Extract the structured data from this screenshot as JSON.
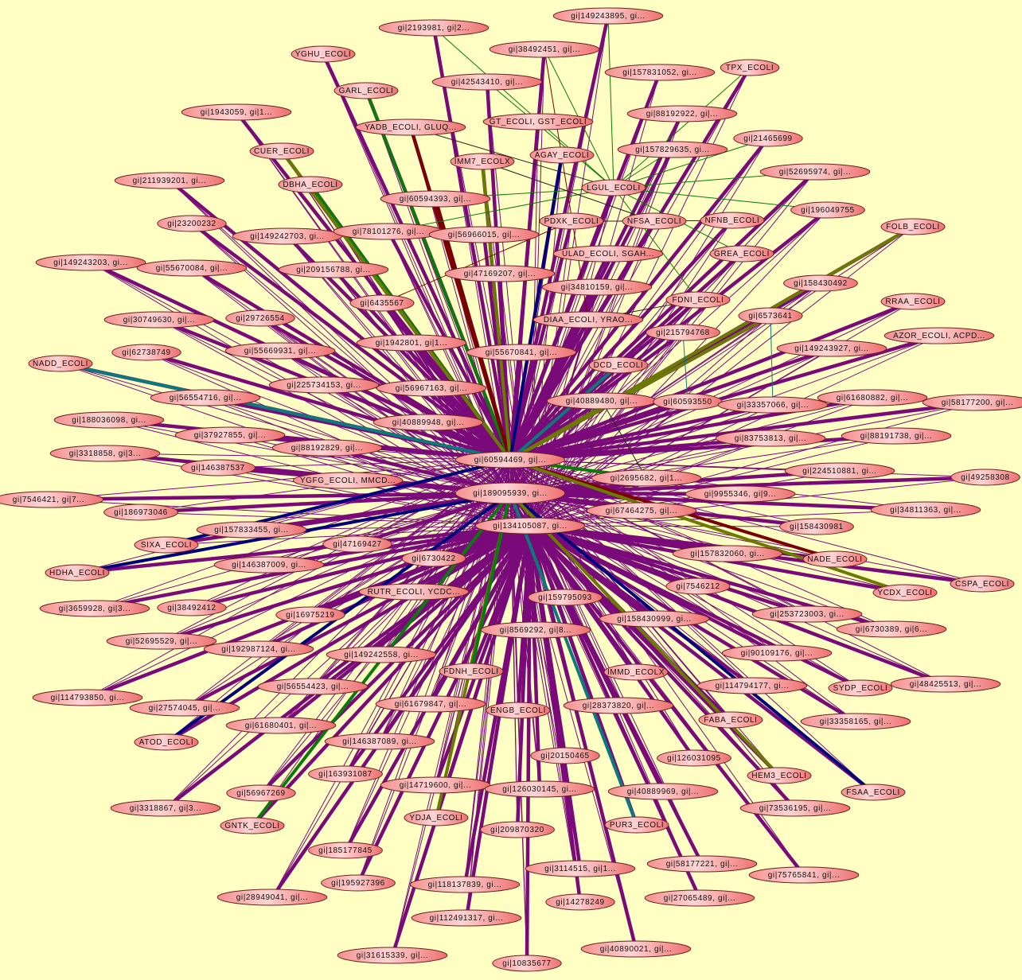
{
  "background_color": "#ffffc4",
  "node_fill_colors": [
    "#ffd0d0",
    "#f07878"
  ],
  "edge_colors": {
    "purple": "#7a0a7a",
    "green": "#0a7a0a",
    "olive": "#6b7a00",
    "darkred": "#7a0000",
    "navy": "#00007a",
    "teal": "#0a7a7a",
    "black": "#202020"
  },
  "hubs": [
    "gi|60594469, gi|...",
    "gi|189095939, gi...",
    "gi|134105087, gi..."
  ],
  "nodes": [
    "gi|149243895, gi...",
    "gi|2193981, gi|2...",
    "gi|38492451, gi|...",
    "YGHU_ECOLI",
    "gi|157831052, gi...",
    "TPX_ECOLI",
    "gi|42543410, gi|...",
    "GARL_ECOLI",
    "gi|1943059, gi|1...",
    "gi|88192922, gi|...",
    "GT_ECOLI, GST_ECOLI",
    "YADB_ECOLI, GLUQ...",
    "gi|21465699",
    "CUER_ECOLI",
    "gi|157829635, gi...",
    "AGAY_ECOLI",
    "IMM7_ECOLX",
    "gi|52695974, gi|...",
    "gi|211939201, gi...",
    "DBHA_ECOLI",
    "LGUL_ECOLI",
    "gi|60594393, gi|...",
    "gi|196049755",
    "gi|23200232",
    "PDXK_ECOLI",
    "NFSA_ECOLI",
    "NFNB_ECOLI",
    "FOLB_ECOLI",
    "gi|149242703, gi...",
    "gi|78101276, gi|...",
    "gi|56966015, gi|...",
    "gi|149243203, gi...",
    "gi|55670084, gi|...",
    "gi|209156788, gi...",
    "ULAD_ECOLI, SGAH...",
    "GREA_ECOLI",
    "gi|47169207, gi|...",
    "gi|34810159, gi|...",
    "gi|158430492",
    "gi|6435567",
    "FDNI_ECOLI",
    "RRAA_ECOLI",
    "gi|29726554",
    "gi|30749630, gi|...",
    "DIAA_ECOLI, YRAO...",
    "gi|6573641",
    "gi|215794768",
    "AZOR_ECOLI, ACPD...",
    "gi|1942801, gi|1...",
    "gi|55669931, gi|...",
    "gi|62738749",
    "gi|55670841, gi|...",
    "gi|149243927, gi...",
    "NADD_ECOLI",
    "DCD_ECOLI",
    "gi|225734153, gi...",
    "gi|56967163, gi|...",
    "gi|56554716, gi|...",
    "gi|40889480, gi|...",
    "gi|60593550",
    "gi|61680882, gi|...",
    "gi|33357066, gi|...",
    "gi|58177200, gi|...",
    "gi|188036098, gi...",
    "gi|40889948, gi|...",
    "gi|37927855, gi|...",
    "gi|83753813, gi|...",
    "gi|88191738, gi|...",
    "gi|3318858, gi|3...",
    "gi|88192829, gi|...",
    "gi|146387537",
    "YGFG_ECOLI, MMCD...",
    "gi|224510881, gi...",
    "gi|49258308",
    "gi|2695682, gi|1...",
    "gi|7546421, gi|7...",
    "gi|9955346, gi|9...",
    "gi|34811363, gi|...",
    "gi|186973046",
    "gi|67464275, gi|...",
    "gi|158430981",
    "gi|157833455, gi...",
    "SIXA_ECOLI",
    "gi|47169427",
    "gi|157832060, gi...",
    "NADE_ECOLI",
    "HDHA_ECOLI",
    "gi|146387009, gi...",
    "gi|6730422",
    "CSPA_ECOLI",
    "gi|7546212",
    "RUTR_ECOLI, YCDC...",
    "YCDX_ECOLI",
    "gi|159795093",
    "gi|3659928, gi|3...",
    "gi|38492412",
    "gi|16975219",
    "gi|253723003, gi...",
    "gi|158430999, gi...",
    "gi|6730389, gi|6...",
    "gi|8569292, gi|8...",
    "gi|52695529, gi|...",
    "gi|192987124, gi...",
    "gi|149242558, gi...",
    "gi|90109176, gi|...",
    "FDNH_ECOLI",
    "IMMD_ECOLX",
    "gi|48425513, gi|...",
    "gi|114793850, gi...",
    "gi|56554423, gi|...",
    "gi|114794177, gi...",
    "SYDP_ECOLI",
    "gi|27574045, gi|...",
    "gi|61679847, gi|...",
    "ENGB_ECOLI",
    "gi|28373820, gi|...",
    "FABA_ECOLI",
    "gi|33358165, gi|...",
    "ATOD_ECOLI",
    "gi|61680401, gi|...",
    "gi|146387089, gi...",
    "gi|20150465",
    "gi|126031095",
    "gi|163931087",
    "HEM3_ECOLI",
    "gi|14719600, gi|...",
    "gi|126030145, gi...",
    "gi|40889969, gi|...",
    "FSAA_ECOLI",
    "gi|56967269",
    "gi|3318867, gi|3...",
    "gi|73536195, gi|...",
    "GNTK_ECOLI",
    "YDJA_ECOLI",
    "PUR3_ECOLI",
    "gi|209870320",
    "gi|185177845",
    "gi|3114515, gi|1...",
    "gi|58177221, gi|...",
    "gi|75765841, gi|...",
    "gi|195927396",
    "gi|118137839, gi...",
    "gi|14278249",
    "gi|28949041, gi|...",
    "gi|27065489, gi|...",
    "gi|112491317, gi...",
    "gi|40890021, gi|...",
    "gi|31615339, gi|...",
    "gi|10835677"
  ],
  "colored_edges": [
    {
      "from": "GARL_ECOLI",
      "to": "gi|60594469, gi|...",
      "color": "green"
    },
    {
      "from": "DBHA_ECOLI",
      "to": "gi|60594469, gi|...",
      "color": "green"
    },
    {
      "from": "CUER_ECOLI",
      "to": "gi|60594469, gi|...",
      "color": "olive"
    },
    {
      "from": "YADB_ECOLI, GLUQ...",
      "to": "gi|60594469, gi|...",
      "color": "darkred"
    },
    {
      "from": "gi|60594393, gi|...",
      "to": "gi|60594469, gi|...",
      "color": "darkred"
    },
    {
      "from": "IMM7_ECOLX",
      "to": "gi|60594469, gi|...",
      "color": "olive"
    },
    {
      "from": "AGAY_ECOLI",
      "to": "gi|60594469, gi|...",
      "color": "navy"
    },
    {
      "from": "FOLB_ECOLI",
      "to": "gi|60594469, gi|...",
      "color": "olive"
    },
    {
      "from": "gi|6573641",
      "to": "gi|60594469, gi|...",
      "color": "olive"
    },
    {
      "from": "DCD_ECOLI",
      "to": "gi|60594469, gi|...",
      "color": "teal"
    },
    {
      "from": "NADD_ECOLI",
      "to": "gi|60594469, gi|...",
      "color": "teal"
    },
    {
      "from": "gi|2695682, gi|1...",
      "to": "gi|60594469, gi|...",
      "color": "green"
    },
    {
      "from": "NADE_ECOLI",
      "to": "gi|60594469, gi|...",
      "color": "darkred"
    },
    {
      "from": "YCDX_ECOLI",
      "to": "gi|60594469, gi|...",
      "color": "olive"
    },
    {
      "from": "SIXA_ECOLI",
      "to": "gi|60594469, gi|...",
      "color": "navy"
    },
    {
      "from": "HDHA_ECOLI",
      "to": "gi|189095939, gi...",
      "color": "navy"
    },
    {
      "from": "FSAA_ECOLI",
      "to": "gi|189095939, gi...",
      "color": "navy"
    },
    {
      "from": "HEM3_ECOLI",
      "to": "gi|189095939, gi...",
      "color": "olive"
    },
    {
      "from": "ATOD_ECOLI",
      "to": "gi|189095939, gi...",
      "color": "navy"
    },
    {
      "from": "GNTK_ECOLI",
      "to": "gi|189095939, gi...",
      "color": "green"
    },
    {
      "from": "YDJA_ECOLI",
      "to": "gi|189095939, gi...",
      "color": "olive"
    },
    {
      "from": "PUR3_ECOLI",
      "to": "gi|189095939, gi...",
      "color": "teal"
    },
    {
      "from": "FDNH_ECOLI",
      "to": "gi|189095939, gi...",
      "color": "green"
    },
    {
      "from": "LGUL_ECOLI",
      "to": "gi|2193981, gi|2...",
      "color": "green"
    },
    {
      "from": "LGUL_ECOLI",
      "to": "gi|149243895, gi...",
      "color": "green"
    },
    {
      "from": "LGUL_ECOLI",
      "to": "TPX_ECOLI",
      "color": "green"
    },
    {
      "from": "LGUL_ECOLI",
      "to": "gi|21465699",
      "color": "green"
    },
    {
      "from": "LGUL_ECOLI",
      "to": "gi|52695974, gi|...",
      "color": "green"
    },
    {
      "from": "LGUL_ECOLI",
      "to": "gi|60594393, gi|...",
      "color": "green"
    },
    {
      "from": "LGUL_ECOLI",
      "to": "gi|78101276, gi|...",
      "color": "green"
    },
    {
      "from": "LGUL_ECOLI",
      "to": "gi|42543410, gi|...",
      "color": "green"
    },
    {
      "from": "LGUL_ECOLI",
      "to": "GREA_ECOLI",
      "color": "green"
    },
    {
      "from": "LGUL_ECOLI",
      "to": "FDNI_ECOLI",
      "color": "green"
    },
    {
      "from": "LGUL_ECOLI",
      "to": "gi|196049755",
      "color": "green"
    },
    {
      "from": "LGUL_ECOLI",
      "to": "gi|157829635, gi...",
      "color": "green"
    },
    {
      "from": "LGUL_ECOLI",
      "to": "gi|38492451, gi|...",
      "color": "green"
    },
    {
      "from": "PDXK_ECOLI",
      "to": "NFSA_ECOLI",
      "color": "black"
    },
    {
      "from": "NFSA_ECOLI",
      "to": "NFNB_ECOLI",
      "color": "black"
    },
    {
      "from": "YADB_ECOLI, GLUQ...",
      "to": "LGUL_ECOLI",
      "color": "black"
    },
    {
      "from": "IMM7_ECOLX",
      "to": "NFSA_ECOLI",
      "color": "black"
    },
    {
      "from": "DIAA_ECOLI, YRAO...",
      "to": "FDNI_ECOLI",
      "color": "black"
    },
    {
      "from": "gi|40889480, gi|...",
      "to": "gi|2695682, gi|1...",
      "color": "black"
    },
    {
      "from": "gi|6435567",
      "to": "PDXK_ECOLI",
      "color": "darkred"
    },
    {
      "from": "gi|38492451, gi|...",
      "to": "DIAA_ECOLI, YRAO...",
      "color": "darkred"
    },
    {
      "from": "gi|215794768",
      "to": "gi|60593550",
      "color": "teal"
    },
    {
      "from": "gi|6573641",
      "to": "gi|33357066, gi|...",
      "color": "teal"
    }
  ]
}
